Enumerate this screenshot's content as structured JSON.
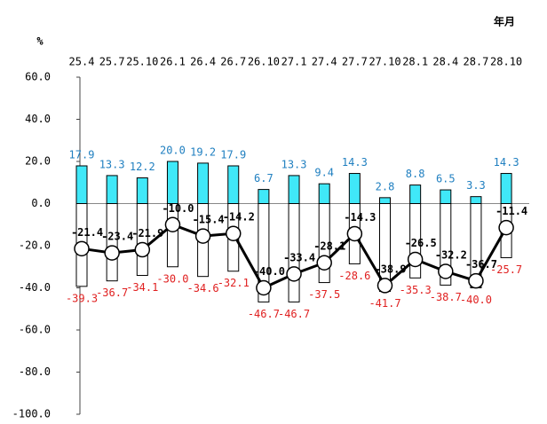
{
  "chart_data": {
    "type": "bar_line",
    "y_unit": "%",
    "x_unit": "年月",
    "categories": [
      "25.4",
      "25.7",
      "25.10",
      "26.1",
      "26.4",
      "26.7",
      "26.10",
      "27.1",
      "27.4",
      "27.7",
      "27.10",
      "28.1",
      "28.4",
      "28.7",
      "28.10"
    ],
    "series": [
      {
        "color": "#40e8f8",
        "label_color": "#1f7fc0",
        "values": [
          17.9,
          13.3,
          12.2,
          20.0,
          19.2,
          17.9,
          6.7,
          13.3,
          9.4,
          14.3,
          2.8,
          8.8,
          6.5,
          3.3,
          14.3
        ],
        "value_labels": [
          "17.9",
          "13.3",
          "12.2",
          "20.0",
          "19.2",
          "17.9",
          "6.7",
          "13.3",
          "9.4",
          "14.3",
          "2.8",
          "8.8",
          "6.5",
          "3.3",
          "14.3"
        ]
      },
      {
        "color": "#ffffff",
        "label_color": "#e02020",
        "values": [
          -39.3,
          -36.7,
          -34.1,
          -30.0,
          -34.6,
          -32.1,
          -46.7,
          -46.7,
          -37.5,
          -28.6,
          -41.7,
          -35.3,
          -38.7,
          -40.0,
          -25.7
        ],
        "value_labels": [
          "-39.3",
          "-36.7",
          "-34.1",
          "-30.0",
          "-34.6",
          "-32.1",
          "-46.7",
          "-46.7",
          "-37.5",
          "-28.6",
          "-41.7",
          "-35.3",
          "-38.7",
          "-40.0",
          "-25.7"
        ]
      },
      {
        "color": "#000000",
        "label_color": "#000000",
        "values": [
          -21.4,
          -23.4,
          -21.9,
          -10.0,
          -15.4,
          -14.2,
          -40.0,
          -33.4,
          -28.1,
          -14.3,
          -38.9,
          -26.5,
          -32.2,
          -36.7,
          -11.4
        ],
        "value_labels": [
          "-21.4",
          "-23.4",
          "-21.9",
          "-10.0",
          "-15.4",
          "-14.2",
          "-40.0",
          "-33.4",
          "-28.1",
          "-14.3",
          "-38.9",
          "-26.5",
          "-32.2",
          "-36.7",
          "-11.4"
        ]
      }
    ],
    "ylim": [
      -100,
      60
    ],
    "yticks": [
      {
        "value": 60,
        "label": "60.0"
      },
      {
        "value": 40,
        "label": "40.0"
      },
      {
        "value": 20,
        "label": "20.0"
      },
      {
        "value": 0,
        "label": "0.0"
      },
      {
        "value": -20,
        "label": "-20.0"
      },
      {
        "value": -40,
        "label": "-40.0"
      },
      {
        "value": -60,
        "label": "-60.0"
      },
      {
        "value": -80,
        "label": "-80.0"
      },
      {
        "value": -100,
        "label": "-100.0"
      }
    ]
  }
}
